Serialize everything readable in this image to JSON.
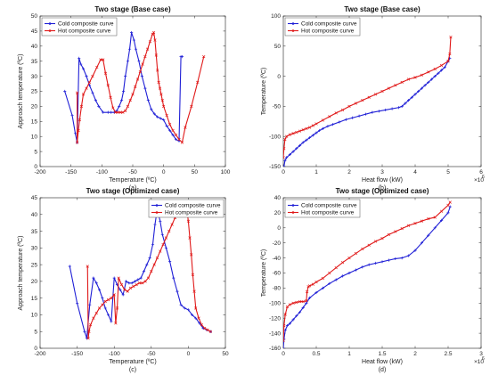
{
  "chart_data": [
    {
      "type": "line",
      "title": "Two stage (Base case)",
      "xlabel": "Temperature (ºC)",
      "ylabel": "Approach temperature (ºC)",
      "caption": "(a)",
      "xlim": [
        -200,
        100
      ],
      "ylim": [
        0,
        50
      ],
      "xticks": [
        -200,
        -150,
        -100,
        -50,
        0,
        50,
        100
      ],
      "yticks": [
        0,
        5,
        10,
        15,
        20,
        25,
        30,
        35,
        40,
        45,
        50
      ],
      "xscale_exponent": "",
      "legend_position": "top-left",
      "colors": {
        "Cold composite curve": "#1f1fd6",
        "Hot composite curve": "#e01818"
      },
      "series": [
        {
          "name": "Cold composite curve",
          "x": [
            -160,
            -148,
            -143,
            -140,
            -137,
            -134,
            -130,
            -125,
            -120,
            -115,
            -110,
            -105,
            -98,
            -90,
            -85,
            -80,
            -76,
            -72,
            -68,
            -65,
            -62,
            -58,
            -55,
            -52,
            -48,
            -45,
            -40,
            -35,
            -30,
            -25,
            -20,
            -15,
            -10,
            -5,
            0,
            5,
            10,
            15,
            20,
            25,
            28,
            30
          ],
          "y": [
            25,
            17,
            11,
            8,
            36,
            34,
            32.5,
            30,
            27,
            24.5,
            22,
            20,
            18,
            18,
            18,
            18,
            18.5,
            20,
            22,
            25,
            30,
            35,
            39,
            44.5,
            42,
            39,
            35,
            30,
            26,
            22,
            19,
            17.5,
            16.5,
            16,
            15.5,
            13.5,
            12,
            10.5,
            9,
            8.5,
            36.5,
            36.5
          ]
        },
        {
          "name": "Hot composite curve",
          "x": [
            -140,
            -140,
            -138,
            -136,
            -133,
            -130,
            -125,
            -120,
            -115,
            -108,
            -102,
            -98,
            -94,
            -90,
            -86,
            -82,
            -78,
            -74,
            -70,
            -66,
            -62,
            -58,
            -54,
            -50,
            -46,
            -42,
            -38,
            -34,
            -30,
            -26,
            -22,
            -18,
            -16,
            -14,
            -12,
            -10,
            -8,
            -6,
            -4,
            -2,
            0,
            5,
            10,
            15,
            20,
            25,
            30,
            35,
            45,
            55,
            65
          ],
          "y": [
            24.5,
            8,
            12,
            15.5,
            20,
            24,
            26,
            28,
            30,
            33,
            35.5,
            35.5,
            31,
            27,
            23,
            19.5,
            18,
            18,
            18,
            18,
            18.5,
            20,
            22,
            24,
            26.5,
            29,
            31.5,
            34,
            36.5,
            39,
            41.5,
            44,
            44.5,
            42,
            37,
            32,
            28,
            26,
            24,
            22,
            20,
            17,
            14,
            12,
            10.5,
            9,
            8,
            13,
            20,
            28,
            36.5
          ]
        }
      ]
    },
    {
      "type": "line",
      "title": "Two stage (Base case)",
      "xlabel": "Heat flow (kW)",
      "ylabel": "Temperature (ºC)",
      "caption": "(b)",
      "xlim": [
        0,
        6
      ],
      "ylim": [
        -150,
        100
      ],
      "xticks": [
        0,
        1,
        2,
        3,
        4,
        5,
        6
      ],
      "yticks": [
        -150,
        -100,
        -50,
        0,
        50,
        100
      ],
      "xscale_exponent": "6",
      "legend_position": "top-left",
      "colors": {
        "Cold composite curve": "#1f1fd6",
        "Hot composite curve": "#e01818"
      },
      "series": [
        {
          "name": "Cold composite curve",
          "x": [
            0,
            0.02,
            0.05,
            0.1,
            0.2,
            0.3,
            0.4,
            0.5,
            0.6,
            0.7,
            0.8,
            0.9,
            1.0,
            1.1,
            1.2,
            1.35,
            1.5,
            1.7,
            1.9,
            2.1,
            2.3,
            2.5,
            2.7,
            2.9,
            3.1,
            3.3,
            3.5,
            3.6,
            3.7,
            3.8,
            3.9,
            4.0,
            4.1,
            4.2,
            4.3,
            4.4,
            4.5,
            4.6,
            4.7,
            4.8,
            4.9,
            5.0,
            5.05
          ],
          "y": [
            -160,
            -150,
            -140,
            -135,
            -130,
            -125,
            -120,
            -115,
            -110,
            -106,
            -102,
            -98,
            -94,
            -90,
            -87,
            -83,
            -80,
            -76,
            -72,
            -69,
            -66,
            -63,
            -60,
            -58,
            -56,
            -54,
            -52,
            -50,
            -45,
            -40,
            -35,
            -30,
            -25,
            -20,
            -15,
            -10,
            -5,
            0,
            5,
            10,
            15,
            25,
            30
          ]
        },
        {
          "name": "Hot composite curve",
          "x": [
            0,
            0.02,
            0.05,
            0.1,
            0.2,
            0.3,
            0.4,
            0.5,
            0.6,
            0.7,
            0.8,
            0.9,
            1.0,
            1.2,
            1.4,
            1.6,
            1.8,
            2.0,
            2.2,
            2.4,
            2.6,
            2.8,
            3.0,
            3.2,
            3.4,
            3.6,
            3.8,
            4.0,
            4.2,
            4.4,
            4.6,
            4.8,
            5.0,
            5.05,
            5.08
          ],
          "y": [
            -135,
            -120,
            -105,
            -100,
            -97,
            -95,
            -93,
            -91,
            -89,
            -87,
            -85,
            -82,
            -79,
            -73,
            -67,
            -61,
            -56,
            -50,
            -45,
            -40,
            -35,
            -30,
            -25,
            -20,
            -15,
            -10,
            -5,
            -2,
            2,
            7,
            12,
            18,
            25,
            37,
            65
          ]
        }
      ]
    },
    {
      "type": "line",
      "title": "Two stage (Optimized case)",
      "xlabel": "Temperature (ºC)",
      "ylabel": "Approach temperature (ºC)",
      "caption": "(c)",
      "xlim": [
        -200,
        50
      ],
      "ylim": [
        0,
        45
      ],
      "xticks": [
        -200,
        -150,
        -100,
        -50,
        0,
        50
      ],
      "yticks": [
        0,
        5,
        10,
        15,
        20,
        25,
        30,
        35,
        40,
        45
      ],
      "xscale_exponent": "",
      "legend_position": "top-right",
      "colors": {
        "Cold composite curve": "#1f1fd6",
        "Hot composite curve": "#e01818"
      },
      "series": [
        {
          "name": "Cold composite curve",
          "x": [
            -160,
            -150,
            -140,
            -137,
            -133,
            -128,
            -124,
            -120,
            -116,
            -112,
            -108,
            -104,
            -100,
            -96,
            -92,
            -88,
            -84,
            -80,
            -76,
            -72,
            -68,
            -64,
            -60,
            -56,
            -52,
            -48,
            -45,
            -42,
            -38,
            -35,
            -30,
            -25,
            -20,
            -15,
            -10,
            -5,
            0,
            5,
            10,
            15,
            20,
            25,
            30
          ],
          "y": [
            24.5,
            13.5,
            5,
            3,
            13,
            21,
            19.5,
            17.5,
            15,
            12,
            10,
            8,
            21,
            19,
            17.5,
            16,
            20,
            19.5,
            19.5,
            20,
            20.5,
            21,
            23,
            25,
            27,
            31,
            37,
            41.5,
            38,
            34,
            30,
            26,
            21,
            17,
            13,
            12,
            11.5,
            10,
            9,
            7.5,
            6,
            5.5,
            5
          ]
        },
        {
          "name": "Hot composite curve",
          "x": [
            -136,
            -135,
            -134,
            -132,
            -128,
            -124,
            -120,
            -116,
            -112,
            -108,
            -104,
            -100,
            -98,
            -96,
            -94,
            -90,
            -86,
            -82,
            -78,
            -74,
            -70,
            -66,
            -62,
            -58,
            -54,
            -50,
            -46,
            -42,
            -38,
            -34,
            -30,
            -26,
            -22,
            -18,
            -14,
            -10,
            -6,
            -2,
            0,
            2,
            4,
            6,
            8,
            10,
            14,
            18,
            22,
            26,
            30
          ],
          "y": [
            24.5,
            3,
            5,
            7,
            9,
            10.5,
            12,
            13,
            14,
            14.5,
            15,
            16,
            7.5,
            12,
            21,
            19,
            17.5,
            17,
            18,
            18.5,
            19,
            19.5,
            19.5,
            20,
            21,
            23,
            25,
            27,
            29,
            31,
            33,
            35,
            37,
            39,
            40,
            41,
            41.5,
            41.5,
            38,
            33,
            28,
            22,
            17,
            12,
            9,
            7,
            6,
            5.5,
            5
          ]
        }
      ]
    },
    {
      "type": "line",
      "title": "Two stage (Optimized case)",
      "xlabel": "Heat flow (kW)",
      "ylabel": "Temperature (ºC)",
      "caption": "(d)",
      "xlim": [
        0,
        3
      ],
      "ylim": [
        -160,
        40
      ],
      "xticks": [
        0,
        0.5,
        1,
        1.5,
        2,
        2.5,
        3
      ],
      "yticks": [
        -160,
        -140,
        -120,
        -100,
        -80,
        -60,
        -40,
        -20,
        0,
        20,
        40
      ],
      "xscale_exponent": "6",
      "legend_position": "top-left",
      "colors": {
        "Cold composite curve": "#1f1fd6",
        "Hot composite curve": "#e01818"
      },
      "series": [
        {
          "name": "Cold composite curve",
          "x": [
            0,
            0.01,
            0.03,
            0.06,
            0.1,
            0.15,
            0.2,
            0.25,
            0.3,
            0.35,
            0.4,
            0.5,
            0.6,
            0.7,
            0.8,
            0.9,
            1.0,
            1.1,
            1.2,
            1.3,
            1.4,
            1.5,
            1.6,
            1.7,
            1.8,
            1.9,
            2.0,
            2.1,
            2.2,
            2.3,
            2.4,
            2.5,
            2.53
          ],
          "y": [
            -160,
            -148,
            -136,
            -130,
            -127,
            -122,
            -117,
            -112,
            -106,
            -100,
            -93,
            -86,
            -80,
            -74,
            -69,
            -64,
            -60,
            -56,
            -52,
            -49,
            -47,
            -45,
            -43,
            -41,
            -40,
            -37,
            -30,
            -20,
            -10,
            0,
            10,
            20,
            28
          ]
        },
        {
          "name": "Hot composite curve",
          "x": [
            0,
            0.01,
            0.03,
            0.06,
            0.1,
            0.15,
            0.2,
            0.25,
            0.3,
            0.35,
            0.36,
            0.38,
            0.4,
            0.45,
            0.5,
            0.6,
            0.7,
            0.8,
            0.9,
            1.0,
            1.1,
            1.2,
            1.3,
            1.4,
            1.5,
            1.6,
            1.7,
            1.8,
            1.9,
            2.0,
            2.1,
            2.2,
            2.3,
            2.4,
            2.5,
            2.53
          ],
          "y": [
            -150,
            -130,
            -115,
            -105,
            -102,
            -100,
            -99,
            -98,
            -98,
            -97,
            -85,
            -78,
            -77,
            -75,
            -72,
            -67,
            -60,
            -53,
            -46,
            -40,
            -34,
            -28,
            -23,
            -18,
            -14,
            -9,
            -5,
            -1,
            3,
            6,
            9,
            12,
            14,
            22,
            30,
            34
          ]
        }
      ]
    }
  ]
}
